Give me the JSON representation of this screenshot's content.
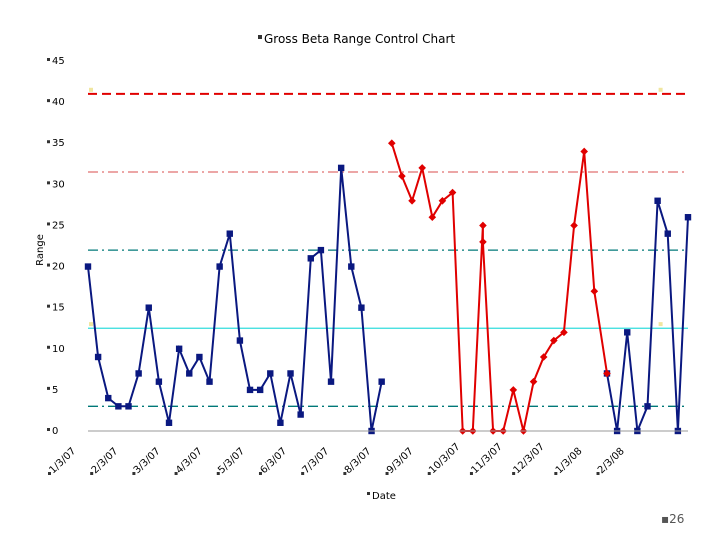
{
  "page_number": "26",
  "chart_data": {
    "type": "line",
    "title": "Gross Beta Range Control Chart",
    "xlabel": "Date",
    "ylabel": "Range",
    "ylim": [
      0,
      45
    ],
    "y_ticks": [
      "0",
      "5",
      "10",
      "15",
      "20",
      "25",
      "30",
      "35",
      "40",
      "45"
    ],
    "x_tick_labels": [
      "1/3/07",
      "2/3/07",
      "3/3/07",
      "4/3/07",
      "5/3/07",
      "6/3/07",
      "7/3/07",
      "8/3/07",
      "9/3/07",
      "10/3/07",
      "11/3/07",
      "12/3/07",
      "1/3/08",
      "2/3/08"
    ],
    "grid": false,
    "legend": "none",
    "control_lines": [
      {
        "value": 41,
        "color": "#e00000",
        "style": "dashed"
      },
      {
        "value": 31.5,
        "color": "#e07070",
        "style": "dash-dot"
      },
      {
        "value": 22,
        "color": "#007878",
        "style": "dash-dot"
      },
      {
        "value": 12.5,
        "color": "#33dddd",
        "style": "solid"
      },
      {
        "value": 3,
        "color": "#007878",
        "style": "dash-dot"
      }
    ],
    "series": [
      {
        "color": "#0a1880",
        "marker": "square",
        "segments": [
          [
            [
              0.0,
              20
            ],
            [
              0.24,
              9
            ],
            [
              0.48,
              4
            ],
            [
              0.72,
              3
            ],
            [
              0.96,
              3
            ],
            [
              1.2,
              7
            ],
            [
              1.44,
              15
            ],
            [
              1.68,
              6
            ],
            [
              1.92,
              1
            ],
            [
              2.16,
              10
            ],
            [
              2.4,
              7
            ],
            [
              2.64,
              9
            ],
            [
              2.88,
              6
            ],
            [
              3.12,
              20
            ],
            [
              3.36,
              24
            ],
            [
              3.6,
              11
            ],
            [
              3.84,
              5
            ],
            [
              4.08,
              5
            ],
            [
              4.32,
              7
            ],
            [
              4.56,
              1
            ],
            [
              4.8,
              7
            ],
            [
              5.04,
              2
            ],
            [
              5.28,
              21
            ],
            [
              5.52,
              22
            ],
            [
              5.76,
              6
            ],
            [
              6.0,
              32
            ],
            [
              6.24,
              20
            ],
            [
              6.48,
              15
            ],
            [
              6.72,
              0
            ],
            [
              6.96,
              6
            ]
          ],
          [
            [
              12.3,
              7
            ],
            [
              12.54,
              0
            ],
            [
              12.78,
              12
            ],
            [
              13.02,
              0
            ],
            [
              13.26,
              3
            ],
            [
              13.5,
              28
            ],
            [
              13.74,
              24
            ],
            [
              13.98,
              0
            ],
            [
              14.22,
              26
            ]
          ]
        ]
      },
      {
        "color": "#e00000",
        "marker": "diamond",
        "segments": [
          [
            [
              7.2,
              35
            ],
            [
              7.44,
              31
            ],
            [
              7.68,
              28
            ],
            [
              7.92,
              32
            ],
            [
              8.16,
              26
            ],
            [
              8.4,
              28
            ],
            [
              8.64,
              29
            ],
            [
              8.88,
              0
            ],
            [
              9.12,
              0
            ],
            [
              9.36,
              25
            ],
            [
              9.36,
              23
            ],
            [
              9.6,
              0
            ],
            [
              9.84,
              0
            ],
            [
              10.08,
              5
            ],
            [
              10.32,
              0
            ],
            [
              10.56,
              6
            ],
            [
              10.8,
              9
            ],
            [
              11.04,
              11
            ],
            [
              11.28,
              12
            ],
            [
              11.52,
              25
            ],
            [
              11.76,
              34
            ],
            [
              12.0,
              17
            ],
            [
              12.3,
              7
            ]
          ]
        ]
      }
    ],
    "center_markers": [
      {
        "x": 0.0,
        "y": 41.5
      },
      {
        "x": 13.5,
        "y": 41.5
      },
      {
        "x": 0.0,
        "y": 13
      },
      {
        "x": 13.5,
        "y": 13
      }
    ]
  }
}
